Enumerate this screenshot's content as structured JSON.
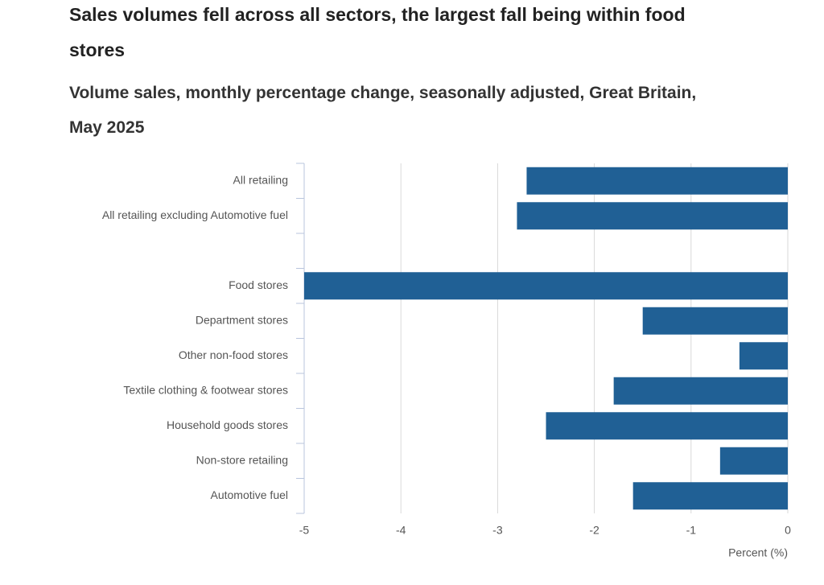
{
  "chart_data": {
    "type": "hbar",
    "title": "Sales volumes fell across all sectors, the largest fall being within food stores",
    "subtitle": "Volume sales, monthly percentage change, seasonally adjusted, Great Britain, May 2025",
    "x_label": "Percent (%)",
    "categories": [
      "All retailing",
      "All retailing excluding Automotive fuel",
      null,
      "Food stores",
      "Department stores",
      "Other non-food stores",
      "Textile clothing & footwear stores",
      "Household goods stores",
      "Non-store retailing",
      "Automotive fuel"
    ],
    "values": [
      -2.7,
      -2.8,
      null,
      -5.0,
      -1.5,
      -0.5,
      -1.8,
      -2.5,
      -0.7,
      -1.6
    ],
    "color": "#206095",
    "xlim": [
      -5,
      0
    ],
    "xticks": [
      -5,
      -4,
      -3,
      -2,
      -1,
      0
    ],
    "grid": true
  }
}
